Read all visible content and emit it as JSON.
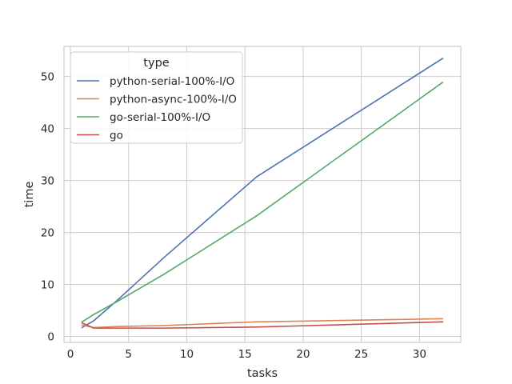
{
  "chart_data": {
    "type": "line",
    "xlabel": "tasks",
    "ylabel": "time",
    "xlim": [
      -0.55,
      33.55
    ],
    "ylim": [
      -1.15,
      55.8
    ],
    "xticks": [
      0,
      5,
      10,
      15,
      20,
      25,
      30
    ],
    "yticks": [
      0,
      10,
      20,
      30,
      40,
      50
    ],
    "grid": true,
    "legend": {
      "title": "type",
      "placement": "top-left"
    },
    "series": [
      {
        "name": "python-serial-100%-I/O",
        "color": "#4c72b0",
        "x": [
          1,
          2,
          4,
          8,
          16,
          32
        ],
        "y": [
          1.7,
          3.0,
          6.9,
          15.1,
          30.7,
          53.5
        ]
      },
      {
        "name": "python-async-100%-I/O",
        "color": "#dd8452",
        "x": [
          1,
          2,
          4,
          8,
          16,
          32
        ],
        "y": [
          2.2,
          1.7,
          1.9,
          2.1,
          2.8,
          3.4
        ]
      },
      {
        "name": "go-serial-100%-I/O",
        "color": "#55a868",
        "x": [
          1,
          2,
          4,
          8,
          16,
          32
        ],
        "y": [
          2.8,
          4.2,
          6.7,
          11.9,
          23.2,
          48.9
        ]
      },
      {
        "name": "go",
        "color": "#c44e52",
        "x": [
          1,
          2,
          4,
          8,
          16,
          32
        ],
        "y": [
          2.6,
          1.6,
          1.6,
          1.6,
          1.8,
          2.8
        ]
      }
    ]
  }
}
